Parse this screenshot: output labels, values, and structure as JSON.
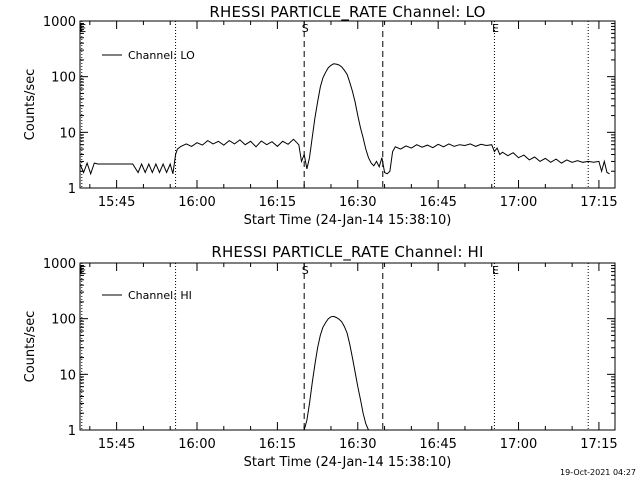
{
  "chart_data": [
    {
      "type": "line",
      "title": "RHESSI PARTICLE_RATE Channel: LO",
      "xlabel": "Start Time (24-Jan-14 15:38:10)",
      "ylabel": "Counts/sec",
      "y_scale": "log",
      "ylim": [
        1,
        1000
      ],
      "y_ticks": [
        1,
        10,
        100,
        1000
      ],
      "xlim": [
        "15:38:10",
        "17:18:00"
      ],
      "x_tick_labels": [
        "15:45",
        "16:00",
        "16:15",
        "16:30",
        "16:45",
        "17:00",
        "17:15"
      ],
      "legend": {
        "label": "Channel: LO",
        "placement": "top-left"
      },
      "markers": [
        {
          "label": "E",
          "time": "15:38:30",
          "style": "dotted"
        },
        {
          "label": "",
          "time": "15:56:00",
          "style": "dotted"
        },
        {
          "label": "S",
          "time": "16:20:00",
          "style": "dashed"
        },
        {
          "label": "",
          "time": "16:34:40",
          "style": "dashed"
        },
        {
          "label": "E",
          "time": "16:55:30",
          "style": "dotted"
        },
        {
          "label": "",
          "time": "17:13:00",
          "style": "dotted"
        }
      ],
      "series": [
        {
          "name": "Channel: LO",
          "points": [
            [
              "15:38:10",
              2.7
            ],
            [
              "15:38:50",
              1.9
            ],
            [
              "15:39:30",
              2.8
            ],
            [
              "15:40:10",
              1.8
            ],
            [
              "15:40:50",
              2.8
            ],
            [
              "15:41:30",
              2.7
            ],
            [
              "15:42:30",
              2.7
            ],
            [
              "15:44:00",
              2.7
            ],
            [
              "15:46:00",
              2.7
            ],
            [
              "15:48:00",
              2.7
            ],
            [
              "15:49:00",
              1.9
            ],
            [
              "15:49:40",
              2.7
            ],
            [
              "15:50:20",
              1.9
            ],
            [
              "15:51:00",
              2.7
            ],
            [
              "15:51:40",
              1.9
            ],
            [
              "15:52:20",
              2.7
            ],
            [
              "15:53:00",
              1.9
            ],
            [
              "15:53:40",
              2.7
            ],
            [
              "15:54:20",
              1.9
            ],
            [
              "15:55:00",
              2.7
            ],
            [
              "15:55:30",
              1.8
            ],
            [
              "15:56:00",
              4.0
            ],
            [
              "15:56:20",
              5.0
            ],
            [
              "15:57:00",
              5.6
            ],
            [
              "15:58:00",
              6.2
            ],
            [
              "15:59:00",
              5.6
            ],
            [
              "16:00:00",
              6.5
            ],
            [
              "16:01:00",
              5.9
            ],
            [
              "16:02:00",
              7.1
            ],
            [
              "16:03:00",
              6.2
            ],
            [
              "16:04:00",
              6.9
            ],
            [
              "16:05:00",
              5.9
            ],
            [
              "16:06:00",
              7.1
            ],
            [
              "16:07:00",
              6.2
            ],
            [
              "16:08:00",
              7.3
            ],
            [
              "16:09:00",
              6.0
            ],
            [
              "16:10:00",
              6.9
            ],
            [
              "16:11:00",
              5.5
            ],
            [
              "16:12:00",
              7.0
            ],
            [
              "16:13:00",
              6.0
            ],
            [
              "16:14:00",
              6.8
            ],
            [
              "16:15:00",
              5.6
            ],
            [
              "16:16:00",
              6.9
            ],
            [
              "16:17:00",
              6.1
            ],
            [
              "16:18:00",
              7.5
            ],
            [
              "16:19:00",
              6.0
            ],
            [
              "16:19:30",
              3.0
            ],
            [
              "16:20:00",
              4.0
            ],
            [
              "16:20:30",
              2.2
            ],
            [
              "16:21:00",
              3.5
            ],
            [
              "16:21:30",
              8.0
            ],
            [
              "16:22:00",
              18
            ],
            [
              "16:22:30",
              35
            ],
            [
              "16:23:00",
              65
            ],
            [
              "16:23:30",
              95
            ],
            [
              "16:24:00",
              120
            ],
            [
              "16:24:30",
              145
            ],
            [
              "16:25:00",
              160
            ],
            [
              "16:25:30",
              170
            ],
            [
              "16:26:00",
              168
            ],
            [
              "16:26:30",
              162
            ],
            [
              "16:27:00",
              150
            ],
            [
              "16:27:30",
              130
            ],
            [
              "16:28:00",
              110
            ],
            [
              "16:28:30",
              80
            ],
            [
              "16:29:00",
              55
            ],
            [
              "16:29:30",
              35
            ],
            [
              "16:30:00",
              20
            ],
            [
              "16:30:30",
              12
            ],
            [
              "16:31:00",
              8.0
            ],
            [
              "16:31:30",
              5.0
            ],
            [
              "16:32:00",
              3.5
            ],
            [
              "16:32:30",
              2.8
            ],
            [
              "16:33:00",
              2.5
            ],
            [
              "16:33:30",
              3.0
            ],
            [
              "16:34:00",
              2.4
            ],
            [
              "16:34:30",
              3.5
            ],
            [
              "16:35:00",
              1.9
            ],
            [
              "16:35:30",
              1.8
            ],
            [
              "16:36:00",
              2.0
            ],
            [
              "16:36:30",
              4.5
            ],
            [
              "16:37:00",
              5.5
            ],
            [
              "16:38:00",
              5.0
            ],
            [
              "16:39:00",
              5.7
            ],
            [
              "16:40:00",
              5.2
            ],
            [
              "16:41:00",
              6.0
            ],
            [
              "16:42:00",
              5.4
            ],
            [
              "16:43:00",
              5.9
            ],
            [
              "16:44:00",
              5.3
            ],
            [
              "16:45:00",
              6.1
            ],
            [
              "16:46:00",
              5.5
            ],
            [
              "16:47:00",
              6.2
            ],
            [
              "16:48:00",
              5.6
            ],
            [
              "16:49:00",
              6.0
            ],
            [
              "16:50:00",
              5.8
            ],
            [
              "16:51:00",
              6.2
            ],
            [
              "16:52:00",
              5.6
            ],
            [
              "16:53:00",
              6.1
            ],
            [
              "16:54:00",
              5.8
            ],
            [
              "16:55:00",
              6.0
            ],
            [
              "16:55:30",
              4.5
            ],
            [
              "16:56:00",
              5.2
            ],
            [
              "16:56:30",
              4.0
            ],
            [
              "16:57:00",
              4.4
            ],
            [
              "16:58:00",
              3.8
            ],
            [
              "16:59:00",
              4.3
            ],
            [
              "17:00:00",
              3.5
            ],
            [
              "17:01:00",
              3.9
            ],
            [
              "17:02:00",
              3.2
            ],
            [
              "17:03:00",
              3.6
            ],
            [
              "17:04:00",
              3.0
            ],
            [
              "17:05:00",
              3.4
            ],
            [
              "17:06:00",
              2.9
            ],
            [
              "17:07:00",
              3.3
            ],
            [
              "17:08:00",
              2.8
            ],
            [
              "17:09:00",
              3.2
            ],
            [
              "17:10:00",
              2.9
            ],
            [
              "17:11:00",
              3.1
            ],
            [
              "17:12:00",
              2.9
            ],
            [
              "17:13:00",
              3.0
            ],
            [
              "17:14:00",
              2.9
            ],
            [
              "17:15:00",
              3.0
            ],
            [
              "17:15:30",
              2.0
            ],
            [
              "17:16:00",
              3.0
            ],
            [
              "17:16:30",
              1.9
            ],
            [
              "17:17:00",
              1.8
            ]
          ]
        }
      ]
    },
    {
      "type": "line",
      "title": "RHESSI PARTICLE_RATE Channel: HI",
      "xlabel": "Start Time (24-Jan-14 15:38:10)",
      "ylabel": "Counts/sec",
      "y_scale": "log",
      "ylim": [
        1,
        1000
      ],
      "y_ticks": [
        1,
        10,
        100,
        1000
      ],
      "xlim": [
        "15:38:10",
        "17:18:00"
      ],
      "x_tick_labels": [
        "15:45",
        "16:00",
        "16:15",
        "16:30",
        "16:45",
        "17:00",
        "17:15"
      ],
      "legend": {
        "label": "Channel: HI",
        "placement": "top-left"
      },
      "markers": [
        {
          "label": "E",
          "time": "15:38:30",
          "style": "dotted"
        },
        {
          "label": "",
          "time": "15:56:00",
          "style": "dotted"
        },
        {
          "label": "S",
          "time": "16:20:00",
          "style": "dashed"
        },
        {
          "label": "",
          "time": "16:34:40",
          "style": "dashed"
        },
        {
          "label": "E",
          "time": "16:55:30",
          "style": "dotted"
        },
        {
          "label": "",
          "time": "17:13:00",
          "style": "dotted"
        }
      ],
      "series": [
        {
          "name": "Channel: HI",
          "points": [
            [
              "16:20:00",
              1.0
            ],
            [
              "16:20:30",
              1.5
            ],
            [
              "16:21:00",
              3.0
            ],
            [
              "16:21:30",
              7.0
            ],
            [
              "16:22:00",
              15
            ],
            [
              "16:22:30",
              30
            ],
            [
              "16:23:00",
              50
            ],
            [
              "16:23:30",
              70
            ],
            [
              "16:24:00",
              85
            ],
            [
              "16:24:30",
              100
            ],
            [
              "16:25:00",
              108
            ],
            [
              "16:25:30",
              110
            ],
            [
              "16:26:00",
              105
            ],
            [
              "16:26:30",
              98
            ],
            [
              "16:27:00",
              88
            ],
            [
              "16:27:30",
              72
            ],
            [
              "16:28:00",
              55
            ],
            [
              "16:28:30",
              35
            ],
            [
              "16:29:00",
              20
            ],
            [
              "16:29:30",
              11
            ],
            [
              "16:30:00",
              6
            ],
            [
              "16:30:30",
              3.5
            ],
            [
              "16:31:00",
              2.0
            ],
            [
              "16:31:30",
              1.3
            ],
            [
              "16:32:00",
              1.0
            ]
          ]
        }
      ]
    }
  ],
  "footer": {
    "timestamp": "19-Oct-2021 04:27"
  }
}
